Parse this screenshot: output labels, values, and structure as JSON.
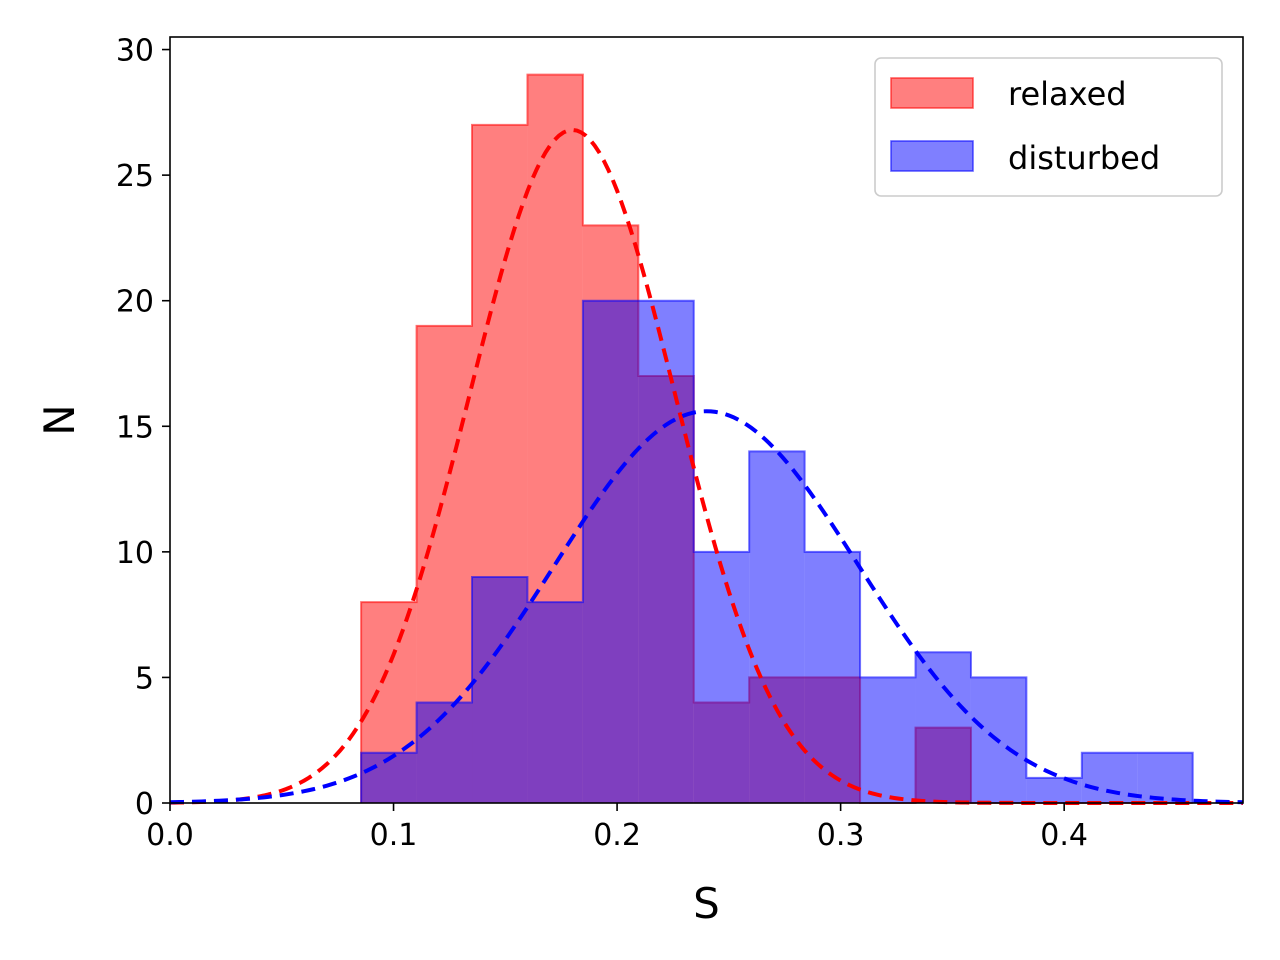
{
  "chart_data": {
    "type": "histogram",
    "xlabel": "S",
    "ylabel": "N",
    "xlim": [
      0.0,
      0.48
    ],
    "ylim": [
      0,
      30.5
    ],
    "xticks": [
      "0.0",
      "0.1",
      "0.2",
      "0.3",
      "0.4"
    ],
    "yticks": [
      "0",
      "5",
      "10",
      "15",
      "20",
      "25",
      "30"
    ],
    "legend_position": "top-right",
    "bin_edges": [
      0.0855,
      0.1103,
      0.1351,
      0.1599,
      0.1847,
      0.2095,
      0.2343,
      0.2591,
      0.2839,
      0.3087,
      0.3335,
      0.3583,
      0.3831,
      0.4079,
      0.4327,
      0.4575
    ],
    "series": [
      {
        "name": "relaxed",
        "color": "#ff0000",
        "counts": [
          8,
          19,
          27,
          29,
          23,
          17,
          4,
          5,
          5,
          0,
          3,
          0,
          0,
          0,
          0
        ],
        "fit": {
          "type": "gaussian",
          "mean": 0.18,
          "peak": 26.8,
          "sigma": 0.046
        }
      },
      {
        "name": "disturbed",
        "color": "#0000ff",
        "counts": [
          2,
          4,
          9,
          8,
          20,
          20,
          10,
          14,
          10,
          5,
          6,
          5,
          1,
          2,
          2
        ],
        "fit": {
          "type": "gaussian",
          "mean": 0.24,
          "peak": 15.6,
          "sigma": 0.068
        }
      }
    ]
  }
}
